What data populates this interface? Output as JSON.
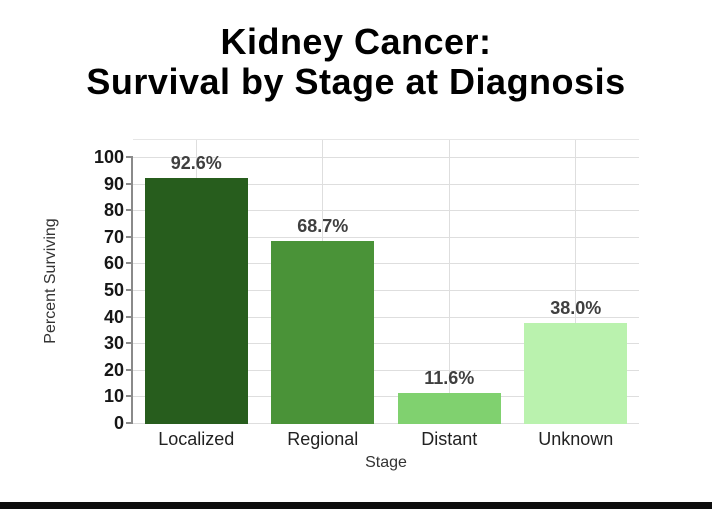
{
  "title": {
    "line1": "Kidney Cancer:",
    "line2": "Survival by Stage at Diagnosis"
  },
  "chart_data": {
    "type": "bar",
    "title": "Kidney Cancer: Survival by Stage at Diagnosis",
    "xlabel": "Stage",
    "ylabel": "Percent Surviving",
    "categories": [
      "Localized",
      "Regional",
      "Distant",
      "Unknown"
    ],
    "values": [
      92.6,
      68.7,
      11.6,
      38.0
    ],
    "value_labels": [
      "92.6%",
      "68.7%",
      "11.6%",
      "38.0%"
    ],
    "bar_colors": [
      "#275d1d",
      "#4a9338",
      "#80d16f",
      "#baf2ae"
    ],
    "ylim": [
      0,
      100
    ],
    "ytick_step": 10,
    "yticks": [
      0,
      10,
      20,
      30,
      40,
      50,
      60,
      70,
      80,
      90,
      100
    ],
    "grid": true,
    "legend": "none",
    "colors": {
      "background": "#ffffff",
      "gridline": "#dedede",
      "axis_line": "#8a8a8a",
      "tick_label": "#161616",
      "value_label": "#3f3f3f",
      "category_label": "#222222",
      "title": "#000000",
      "bottom_rule": "#0d0d0d"
    }
  }
}
